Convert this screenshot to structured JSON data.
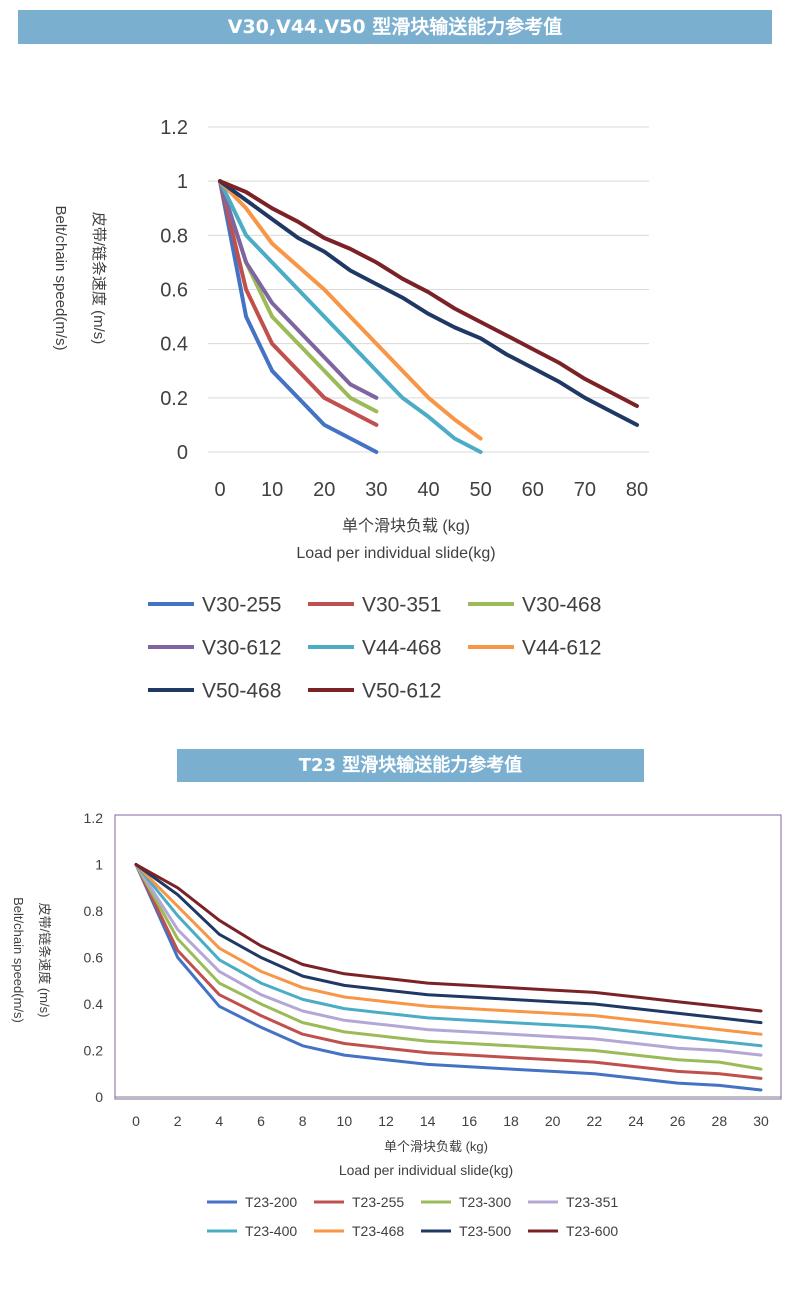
{
  "banners": {
    "top": "V30,V44.V50  型滑块输送能力参考值",
    "bottom": "T23  型滑块输送能力参考值"
  },
  "chart_data": [
    {
      "type": "line",
      "title": "V30,V44.V50  型滑块输送能力参考值",
      "ylabel_cn": "皮带/链条速度 (m/s)",
      "ylabel_en": "Belt/chain speed(m/s)",
      "xlabel_cn": "单个滑块负载 (kg)",
      "xlabel_en": "Load per individual slide(kg)",
      "xlim": [
        0,
        80
      ],
      "ylim": [
        0,
        1.2
      ],
      "x_ticks": [
        "0",
        "10",
        "20",
        "30",
        "40",
        "50",
        "60",
        "70",
        "80"
      ],
      "y_ticks": [
        "0",
        "0.2",
        "0.4",
        "0.6",
        "0.8",
        "1",
        "1.2"
      ],
      "grid": true,
      "legend_position": "bottom",
      "series": [
        {
          "name": "V30-255",
          "color": "#4472c4",
          "x": [
            0,
            5,
            10,
            20,
            30
          ],
          "y": [
            1,
            0.5,
            0.3,
            0.1,
            0
          ]
        },
        {
          "name": "V30-351",
          "color": "#c0504d",
          "x": [
            0,
            5,
            10,
            20,
            30
          ],
          "y": [
            1,
            0.6,
            0.4,
            0.2,
            0.1
          ]
        },
        {
          "name": "V30-468",
          "color": "#9bbb59",
          "x": [
            0,
            5,
            10,
            20,
            25,
            30
          ],
          "y": [
            1,
            0.7,
            0.5,
            0.3,
            0.2,
            0.15
          ]
        },
        {
          "name": "V30-612",
          "color": "#8064a2",
          "x": [
            0,
            5,
            10,
            20,
            25,
            30
          ],
          "y": [
            1,
            0.7,
            0.55,
            0.35,
            0.25,
            0.2
          ]
        },
        {
          "name": "V44-468",
          "color": "#4bacc6",
          "x": [
            0,
            5,
            10,
            20,
            30,
            35,
            40,
            45,
            50
          ],
          "y": [
            1,
            0.8,
            0.7,
            0.5,
            0.3,
            0.2,
            0.13,
            0.05,
            0
          ]
        },
        {
          "name": "V44-612",
          "color": "#f79646",
          "x": [
            0,
            5,
            10,
            20,
            30,
            40,
            45,
            50
          ],
          "y": [
            1,
            0.9,
            0.77,
            0.6,
            0.4,
            0.2,
            0.12,
            0.05
          ]
        },
        {
          "name": "V50-468",
          "color": "#1f3864",
          "x": [
            0,
            10,
            15,
            20,
            25,
            30,
            35,
            40,
            45,
            50,
            55,
            60,
            65,
            70,
            75,
            80
          ],
          "y": [
            1,
            0.86,
            0.79,
            0.74,
            0.67,
            0.62,
            0.57,
            0.51,
            0.46,
            0.42,
            0.36,
            0.31,
            0.26,
            0.2,
            0.15,
            0.1
          ]
        },
        {
          "name": "V50-612",
          "color": "#7b2226",
          "x": [
            0,
            5,
            10,
            15,
            20,
            25,
            30,
            35,
            40,
            45,
            50,
            55,
            60,
            65,
            70,
            75,
            80
          ],
          "y": [
            1,
            0.96,
            0.9,
            0.85,
            0.79,
            0.75,
            0.7,
            0.64,
            0.59,
            0.53,
            0.48,
            0.43,
            0.38,
            0.33,
            0.27,
            0.22,
            0.17
          ]
        }
      ]
    },
    {
      "type": "line",
      "title": "T23  型滑块输送能力参考值",
      "ylabel_cn": "皮带/链条速度 (m/s)",
      "ylabel_en": "Belt/chain speed(m/s)",
      "xlabel_cn": "单个滑块负载 (kg)",
      "xlabel_en": "Load per individual slide(kg)",
      "xlim": [
        0,
        30
      ],
      "ylim": [
        0,
        1.2
      ],
      "x_ticks": [
        "0",
        "2",
        "4",
        "6",
        "8",
        "10",
        "12",
        "14",
        "16",
        "18",
        "20",
        "22",
        "24",
        "26",
        "28",
        "30"
      ],
      "y_ticks": [
        "0",
        "0.2",
        "0.4",
        "0.6",
        "0.8",
        "1",
        "1.2"
      ],
      "grid": false,
      "legend_position": "bottom",
      "series": [
        {
          "name": "T23-200",
          "color": "#4472c4",
          "x": [
            0,
            2,
            4,
            6,
            8,
            10,
            12,
            14,
            16,
            18,
            20,
            22,
            24,
            26,
            28,
            30
          ],
          "y": [
            1,
            0.6,
            0.39,
            0.3,
            0.22,
            0.18,
            0.16,
            0.14,
            0.13,
            0.12,
            0.11,
            0.1,
            0.08,
            0.06,
            0.05,
            0.03
          ]
        },
        {
          "name": "T23-255",
          "color": "#c0504d",
          "x": [
            0,
            2,
            4,
            6,
            8,
            10,
            12,
            14,
            16,
            18,
            20,
            22,
            24,
            26,
            28,
            30
          ],
          "y": [
            1,
            0.63,
            0.44,
            0.35,
            0.27,
            0.23,
            0.21,
            0.19,
            0.18,
            0.17,
            0.16,
            0.15,
            0.13,
            0.11,
            0.1,
            0.08
          ]
        },
        {
          "name": "T23-300",
          "color": "#9bbb59",
          "x": [
            0,
            2,
            4,
            6,
            8,
            10,
            12,
            14,
            16,
            18,
            20,
            22,
            24,
            26,
            28,
            30
          ],
          "y": [
            1,
            0.68,
            0.49,
            0.4,
            0.32,
            0.28,
            0.26,
            0.24,
            0.23,
            0.22,
            0.21,
            0.2,
            0.18,
            0.16,
            0.15,
            0.12
          ]
        },
        {
          "name": "T23-351",
          "color": "#b4a7d6",
          "x": [
            0,
            2,
            4,
            6,
            8,
            10,
            12,
            14,
            16,
            18,
            20,
            22,
            24,
            26,
            28,
            30
          ],
          "y": [
            1,
            0.72,
            0.54,
            0.44,
            0.37,
            0.33,
            0.31,
            0.29,
            0.28,
            0.27,
            0.26,
            0.25,
            0.23,
            0.21,
            0.2,
            0.18
          ]
        },
        {
          "name": "T23-400",
          "color": "#4bacc6",
          "x": [
            0,
            2,
            4,
            6,
            8,
            10,
            12,
            14,
            16,
            18,
            20,
            22,
            24,
            26,
            28,
            30
          ],
          "y": [
            1,
            0.78,
            0.59,
            0.49,
            0.42,
            0.38,
            0.36,
            0.34,
            0.33,
            0.32,
            0.31,
            0.3,
            0.28,
            0.26,
            0.24,
            0.22
          ]
        },
        {
          "name": "T23-468",
          "color": "#f79646",
          "x": [
            0,
            2,
            4,
            6,
            8,
            10,
            12,
            14,
            16,
            18,
            20,
            22,
            24,
            26,
            28,
            30
          ],
          "y": [
            1,
            0.82,
            0.64,
            0.54,
            0.47,
            0.43,
            0.41,
            0.39,
            0.38,
            0.37,
            0.36,
            0.35,
            0.33,
            0.31,
            0.29,
            0.27
          ]
        },
        {
          "name": "T23-500",
          "color": "#1f3864",
          "x": [
            0,
            2,
            4,
            6,
            8,
            10,
            12,
            14,
            16,
            18,
            20,
            22,
            24,
            26,
            28,
            30
          ],
          "y": [
            1,
            0.87,
            0.7,
            0.6,
            0.52,
            0.48,
            0.46,
            0.44,
            0.43,
            0.42,
            0.41,
            0.4,
            0.38,
            0.36,
            0.34,
            0.32
          ]
        },
        {
          "name": "T23-600",
          "color": "#7b2226",
          "x": [
            0,
            2,
            4,
            6,
            8,
            10,
            12,
            14,
            16,
            18,
            20,
            22,
            24,
            26,
            28,
            30
          ],
          "y": [
            1,
            0.9,
            0.76,
            0.65,
            0.57,
            0.53,
            0.51,
            0.49,
            0.48,
            0.47,
            0.46,
            0.45,
            0.43,
            0.41,
            0.39,
            0.37
          ]
        }
      ]
    }
  ]
}
